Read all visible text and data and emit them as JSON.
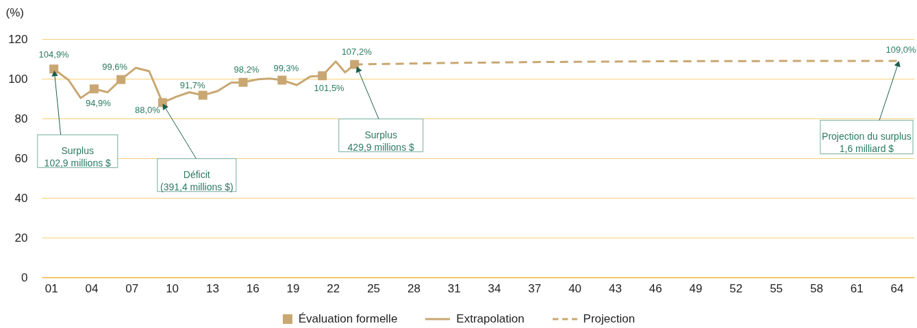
{
  "chart_data": {
    "type": "line",
    "ylabel": "(%)",
    "xlim": [
      0.3,
      65.3
    ],
    "ylim": [
      0,
      120
    ],
    "xticks": [
      {
        "value": 1,
        "label": "01"
      },
      {
        "value": 4,
        "label": "04"
      },
      {
        "value": 7,
        "label": "07"
      },
      10,
      13,
      16,
      19,
      22,
      25,
      28,
      31,
      34,
      37,
      40,
      43,
      46,
      49,
      52,
      55,
      58,
      61,
      64
    ],
    "yticks": [
      0,
      20,
      40,
      60,
      80,
      100,
      120
    ],
    "grid": "y",
    "legend": "bottom",
    "series": [
      {
        "name": "Évaluation formelle",
        "type": "scatter",
        "marker": "square",
        "color": "#c9a772",
        "x": [
          1.2,
          4.2,
          6.2,
          9.3,
          12.3,
          15.3,
          18.2,
          21.2,
          23.6
        ],
        "values": [
          104.9,
          94.9,
          99.6,
          88.0,
          91.7,
          98.2,
          99.3,
          101.5,
          107.2
        ],
        "value_labels": [
          "104,9%",
          "94,9%",
          "99,6%",
          "88,0%",
          "91,7%",
          "98,2%",
          "99,3%",
          "101,5%",
          "107,2%"
        ]
      },
      {
        "name": "Extrapolation",
        "line_style": "solid",
        "color": "#c9a772",
        "x": [
          1.2,
          2.3,
          3.2,
          4.2,
          5.2,
          6.2,
          7.3,
          8.3,
          9.3,
          10.3,
          11.3,
          12.3,
          13.4,
          14.4,
          15.3,
          16.4,
          17.3,
          18.2,
          19.3,
          20.3,
          21.2,
          22.2,
          22.9,
          23.6
        ],
        "values": [
          104.9,
          99.3,
          90.3,
          94.9,
          93.2,
          99.6,
          105.5,
          103.8,
          88.0,
          90.9,
          93.2,
          91.7,
          93.8,
          98.0,
          98.2,
          99.7,
          100.1,
          99.3,
          96.8,
          101.1,
          101.5,
          108.7,
          103.2,
          107.2
        ]
      },
      {
        "name": "Projection",
        "line_style": "dashed",
        "color": "#c9a772",
        "x": [
          23.6,
          30,
          37,
          44,
          51,
          64
        ],
        "values": [
          107.2,
          107.9,
          108.4,
          108.7,
          108.9,
          109.0
        ],
        "value_labels": [
          null,
          null,
          null,
          null,
          null,
          "109,0%"
        ]
      }
    ],
    "annotations": [
      {
        "text": "Surplus\n102,9 millions $",
        "x": 1.2,
        "y": 104.9
      },
      {
        "text": "Déficit\n(391,4 millions $)",
        "x": 9.3,
        "y": 88.0
      },
      {
        "text": "Surplus\n429,9 millions $",
        "x": 23.6,
        "y": 107.2
      },
      {
        "text": "Projection du surplus\n1,6 milliard $",
        "x": 64,
        "y": 109.0
      }
    ]
  }
}
